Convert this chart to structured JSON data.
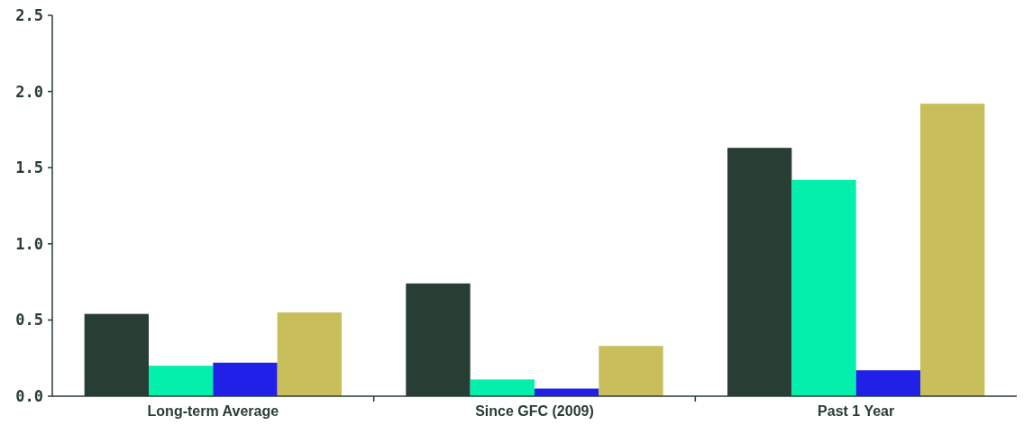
{
  "chart_data": {
    "type": "bar",
    "categories": [
      "Long-term Average",
      "Since GFC (2009)",
      "Past 1 Year"
    ],
    "series": [
      {
        "color": "#283d33",
        "values": [
          0.54,
          0.74,
          1.63
        ]
      },
      {
        "color": "#02efac",
        "values": [
          0.2,
          0.11,
          1.42
        ]
      },
      {
        "color": "#2020e8",
        "values": [
          0.22,
          0.05,
          0.17
        ]
      },
      {
        "color": "#c8be5c",
        "values": [
          0.55,
          0.33,
          1.92
        ]
      }
    ],
    "ylim": [
      0,
      2.5
    ],
    "yticks": [
      {
        "value": 0,
        "label": "0.0"
      },
      {
        "value": 0.5,
        "label": "0.5"
      },
      {
        "value": 1,
        "label": "1.0"
      },
      {
        "value": 1.5,
        "label": "1.5"
      },
      {
        "value": 2,
        "label": "2.0"
      },
      {
        "value": 2.5,
        "label": "2.5"
      }
    ],
    "grid": false
  }
}
